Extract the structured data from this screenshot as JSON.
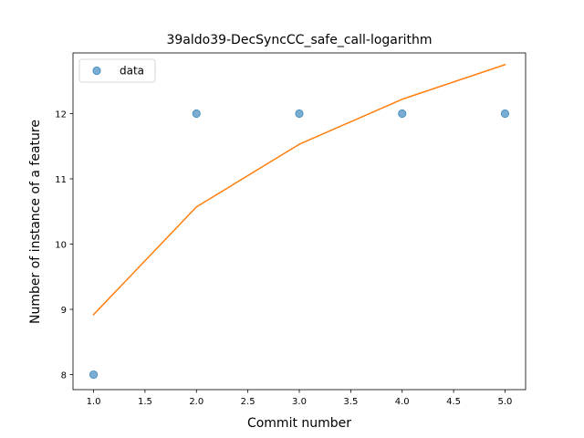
{
  "chart_data": {
    "type": "scatter",
    "title": "39aldo39-DecSyncCC_safe_call-logarithm",
    "xlabel": "Commit number",
    "ylabel": "Number of instance of a feature",
    "xlim": [
      0.8,
      5.2
    ],
    "ylim": [
      7.77,
      12.93
    ],
    "x_ticks": [
      1.0,
      1.5,
      2.0,
      2.5,
      3.0,
      3.5,
      4.0,
      4.5,
      5.0
    ],
    "x_tick_labels": [
      "1.0",
      "1.5",
      "2.0",
      "2.5",
      "3.0",
      "3.5",
      "4.0",
      "4.5",
      "5.0"
    ],
    "y_ticks": [
      8,
      9,
      10,
      11,
      12
    ],
    "y_tick_labels": [
      "8",
      "9",
      "10",
      "11",
      "12"
    ],
    "grid": false,
    "legend": {
      "position": "top-left",
      "entries": [
        "data"
      ]
    },
    "series": [
      {
        "name": "data",
        "kind": "scatter",
        "color": "#1f77b4",
        "x": [
          1,
          2,
          3,
          4,
          5
        ],
        "y": [
          8,
          12,
          12,
          12,
          12
        ]
      },
      {
        "kind": "line",
        "color": "#ff7f0e",
        "x": [
          1,
          2,
          3,
          4,
          5
        ],
        "y": [
          8.92,
          10.57,
          11.53,
          12.22,
          12.75
        ]
      }
    ]
  }
}
